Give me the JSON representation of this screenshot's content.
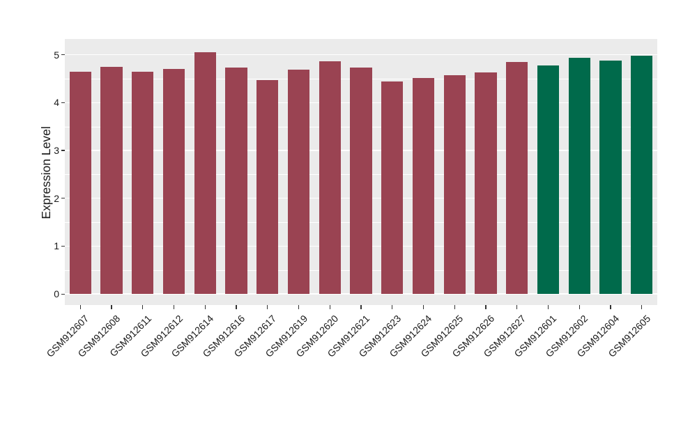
{
  "chart_data": {
    "type": "bar",
    "title": "",
    "xlabel": "",
    "ylabel": "Expression Level",
    "categories": [
      "GSM912607",
      "GSM912608",
      "GSM912611",
      "GSM912612",
      "GSM912614",
      "GSM912616",
      "GSM912617",
      "GSM912619",
      "GSM912620",
      "GSM912621",
      "GSM912623",
      "GSM912624",
      "GSM912625",
      "GSM912626",
      "GSM912627",
      "GSM912601",
      "GSM912602",
      "GSM912604",
      "GSM912605"
    ],
    "values": [
      4.65,
      4.75,
      4.64,
      4.7,
      5.06,
      4.74,
      4.47,
      4.69,
      4.87,
      4.74,
      4.44,
      4.51,
      4.57,
      4.63,
      4.85,
      4.77,
      4.94,
      4.88,
      4.98
    ],
    "bar_colors": [
      "#9A4352",
      "#9A4352",
      "#9A4352",
      "#9A4352",
      "#9A4352",
      "#9A4352",
      "#9A4352",
      "#9A4352",
      "#9A4352",
      "#9A4352",
      "#9A4352",
      "#9A4352",
      "#9A4352",
      "#9A4352",
      "#9A4352",
      "#006A4B",
      "#006A4B",
      "#006A4B",
      "#006A4B"
    ],
    "yticks": [
      0,
      1,
      2,
      3,
      4,
      5
    ],
    "ylim": [
      -0.23,
      5.33
    ],
    "grid": "major-and-minor",
    "legend": "none",
    "panel_bg": "#EBEBEB",
    "grid_color": "#FFFFFF",
    "tick_mark_color": "#333333",
    "text_color": "#1A1A1A",
    "bar_width_fraction": 0.7
  }
}
